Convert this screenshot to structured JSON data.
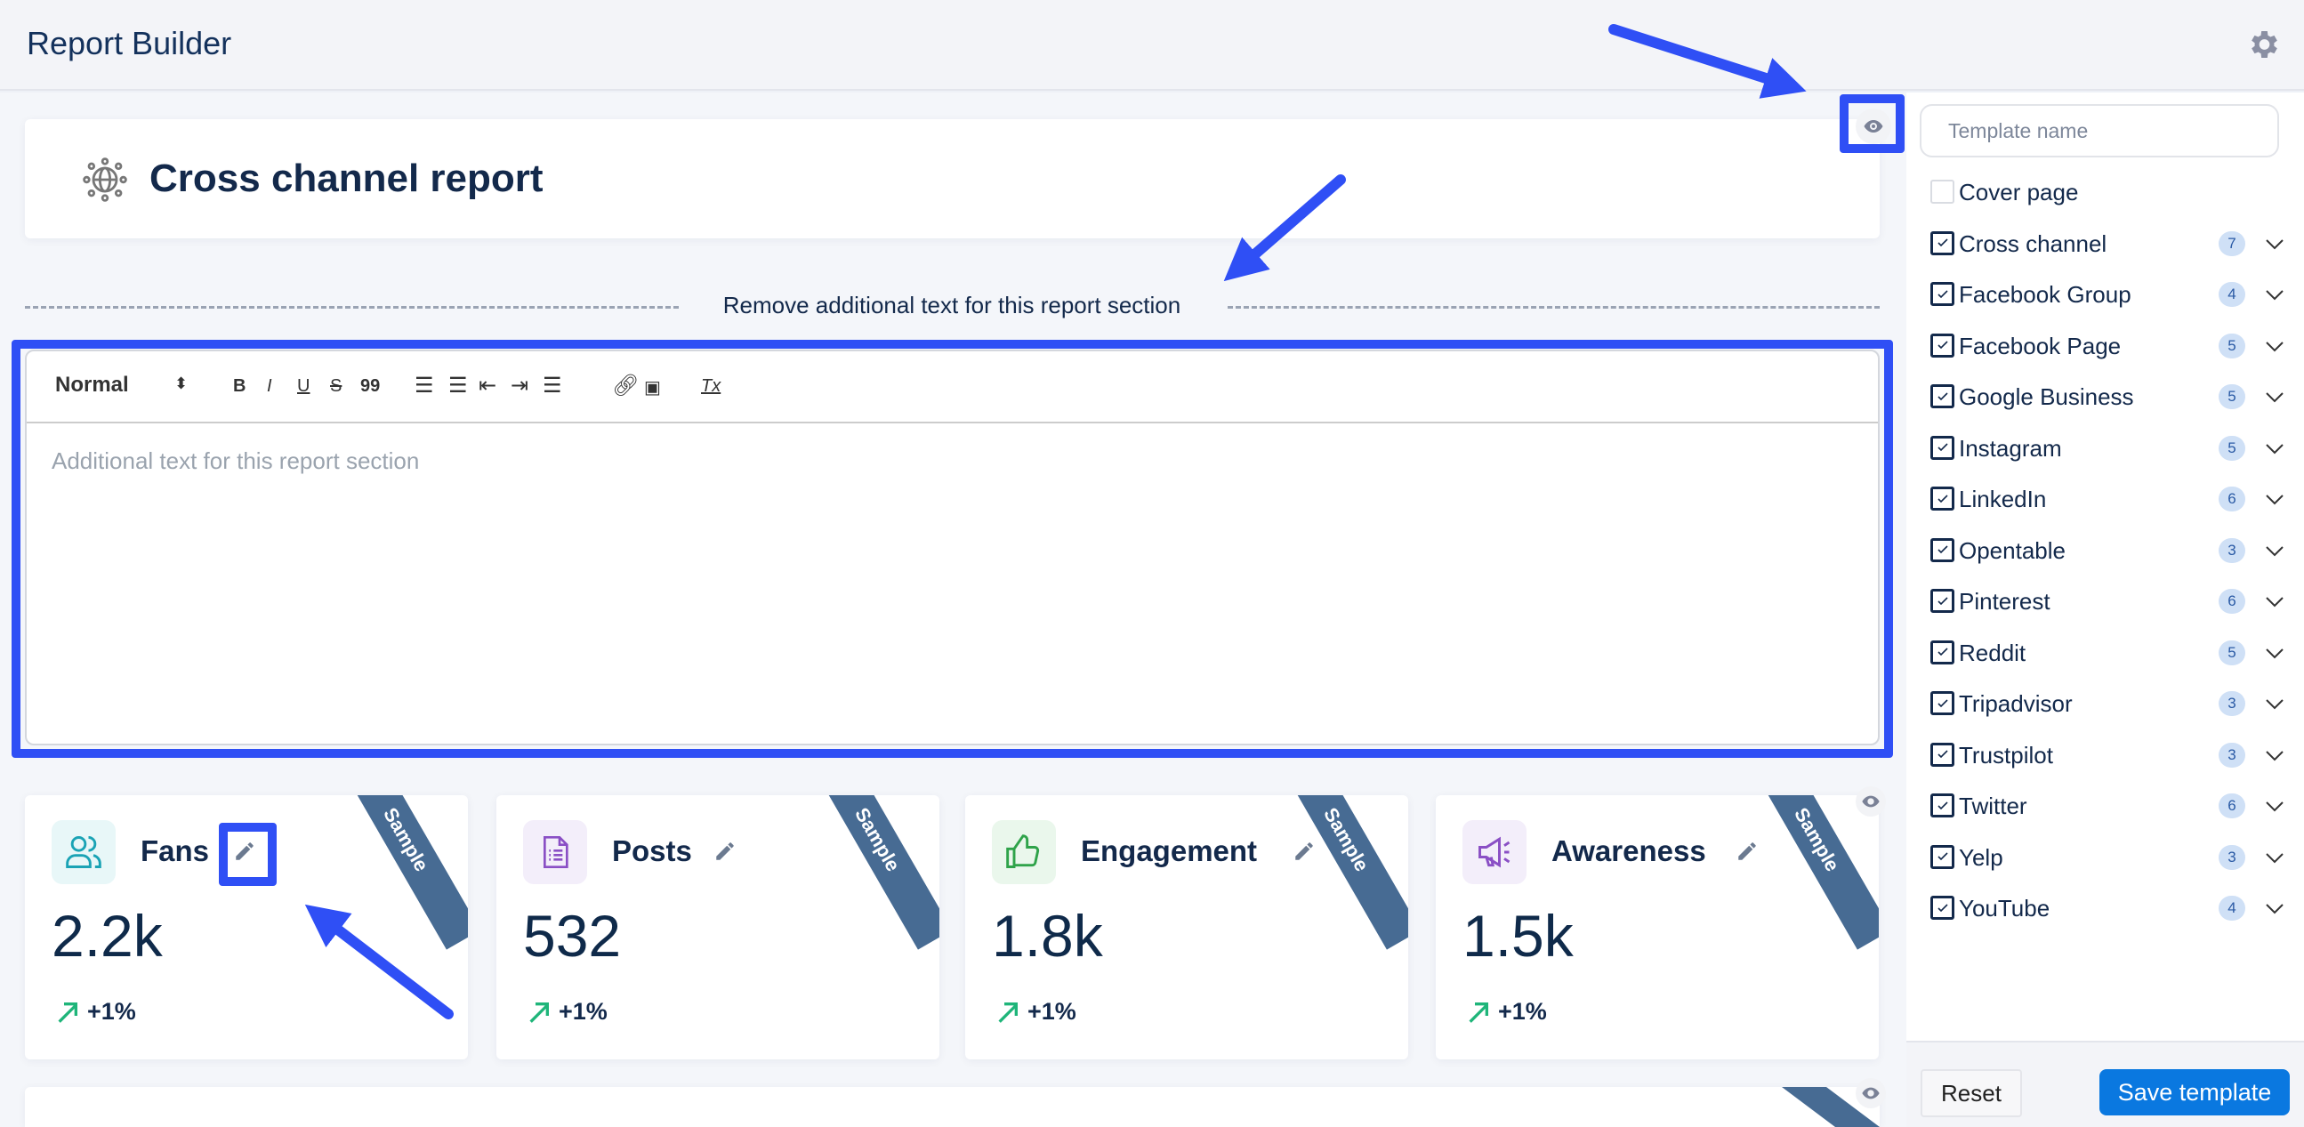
{
  "header": {
    "title": "Report Builder",
    "settings_icon": "gear-icon"
  },
  "report": {
    "title": "Cross channel report",
    "icon": "globe-network-icon"
  },
  "section": {
    "remove_text_label": "Remove additional text for this report section"
  },
  "editor": {
    "format_select": "Normal",
    "toolbar": {
      "bold": "B",
      "italic": "I",
      "underline": "U",
      "strike": "S",
      "quote": "99",
      "clear": "Tx"
    },
    "placeholder": "Additional text for this report section"
  },
  "stats": [
    {
      "title": "Fans",
      "value": "2.2k",
      "change": "+1%",
      "ribbon": "Sample",
      "icon_color": "#1aa3b5",
      "icon_bg": "#e8f7f8"
    },
    {
      "title": "Posts",
      "value": "532",
      "change": "+1%",
      "ribbon": "Sample",
      "icon_color": "#8a4fc5",
      "icon_bg": "#f3eefa"
    },
    {
      "title": "Engagement",
      "value": "1.8k",
      "change": "+1%",
      "ribbon": "Sample",
      "icon_color": "#2fa34a",
      "icon_bg": "#eaf7ec"
    },
    {
      "title": "Awareness",
      "value": "1.5k",
      "change": "+1%",
      "ribbon": "Sample",
      "icon_color": "#8a4fc5",
      "icon_bg": "#f3eefa"
    }
  ],
  "sidebar": {
    "template_name_placeholder": "Template name",
    "items": [
      {
        "label": "Cover page",
        "checked": false
      },
      {
        "label": "Cross channel",
        "checked": true,
        "count": "7"
      },
      {
        "label": "Facebook Group",
        "checked": true,
        "count": "4"
      },
      {
        "label": "Facebook Page",
        "checked": true,
        "count": "5"
      },
      {
        "label": "Google Business",
        "checked": true,
        "count": "5"
      },
      {
        "label": "Instagram",
        "checked": true,
        "count": "5"
      },
      {
        "label": "LinkedIn",
        "checked": true,
        "count": "6"
      },
      {
        "label": "Opentable",
        "checked": true,
        "count": "3"
      },
      {
        "label": "Pinterest",
        "checked": true,
        "count": "6"
      },
      {
        "label": "Reddit",
        "checked": true,
        "count": "5"
      },
      {
        "label": "Tripadvisor",
        "checked": true,
        "count": "3"
      },
      {
        "label": "Trustpilot",
        "checked": true,
        "count": "3"
      },
      {
        "label": "Twitter",
        "checked": true,
        "count": "6"
      },
      {
        "label": "Yelp",
        "checked": true,
        "count": "3"
      },
      {
        "label": "YouTube",
        "checked": true,
        "count": "4"
      }
    ],
    "reset_label": "Reset",
    "save_label": "Save template"
  },
  "colors": {
    "annotation": "#2f4ff5",
    "primary": "#0a78e0",
    "positive": "#1fb57a",
    "ribbon": "#476b93"
  }
}
